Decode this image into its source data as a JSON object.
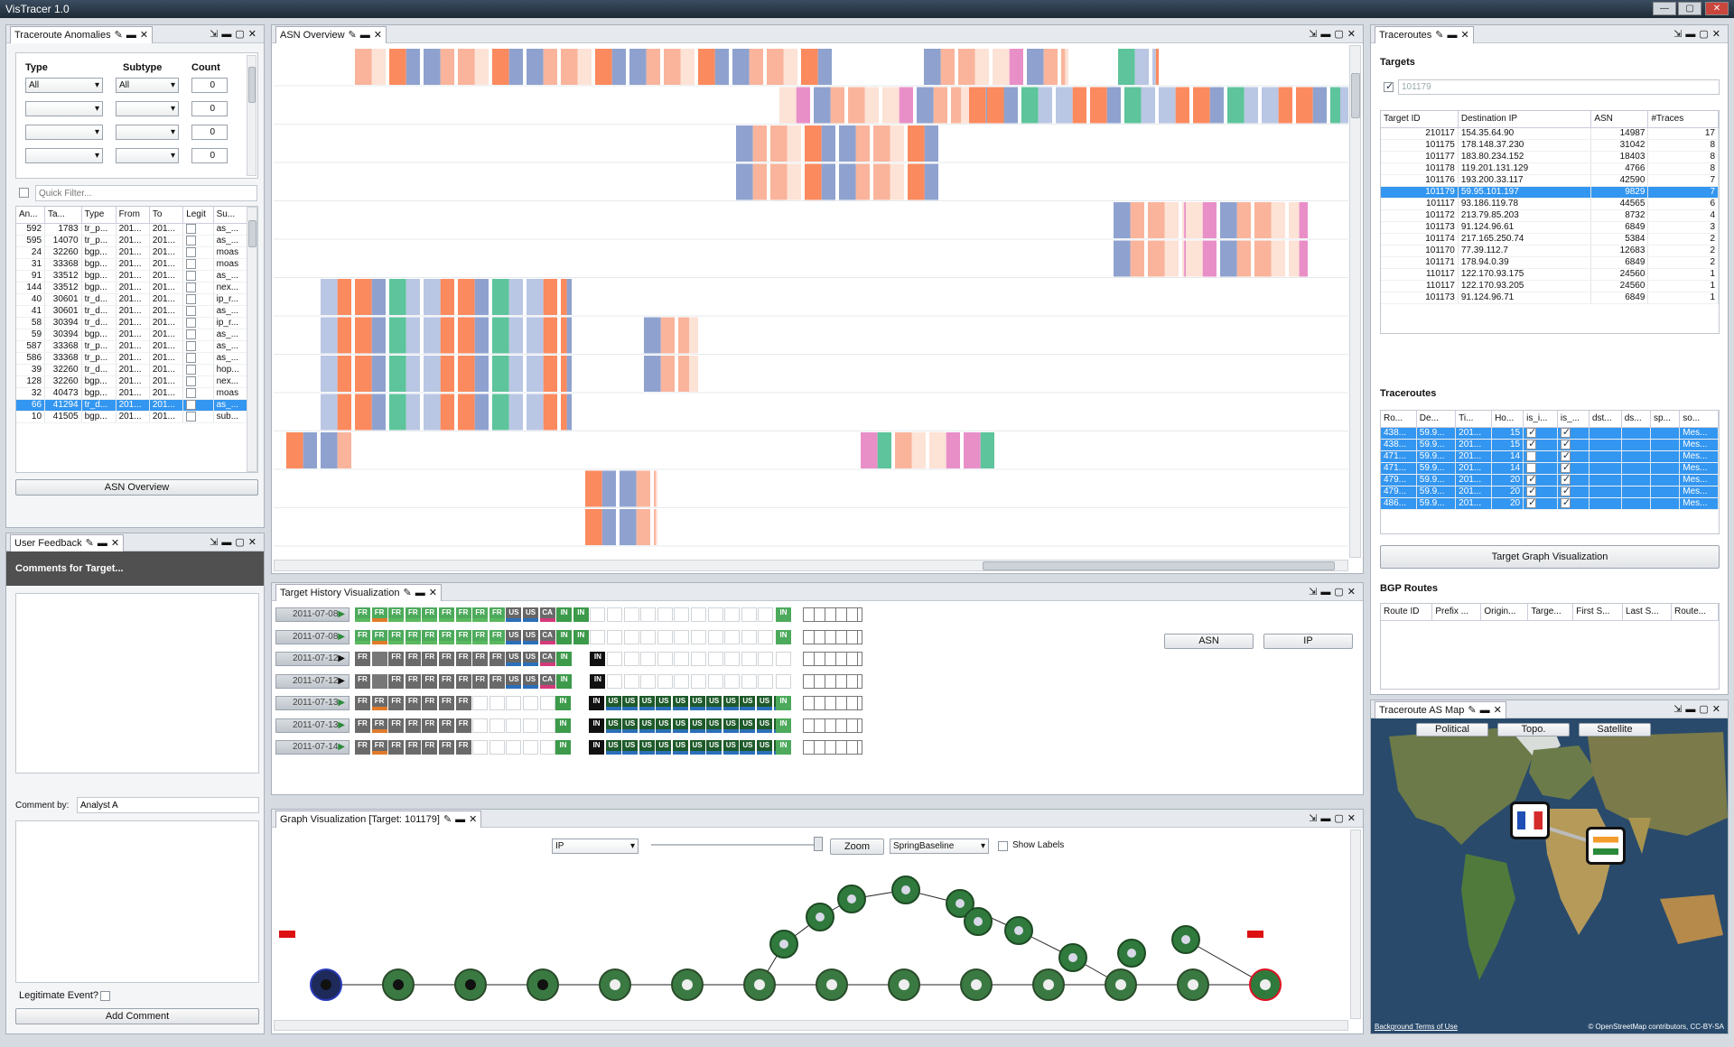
{
  "app": {
    "title": "VisTracer 1.0"
  },
  "anomalies": {
    "tab": "Traceroute Anomalies",
    "headers": [
      "Type",
      "Subtype",
      "Count"
    ],
    "filters": [
      {
        "type": "All",
        "subtype": "All",
        "count": "0"
      },
      {
        "type": "",
        "subtype": "",
        "count": "0"
      },
      {
        "type": "",
        "subtype": "",
        "count": "0"
      },
      {
        "type": "",
        "subtype": "",
        "count": "0"
      }
    ],
    "quick_filter_placeholder": "Quick Filter...",
    "columns": [
      "An...",
      "Ta...",
      "Type",
      "From",
      "To",
      "Legit",
      "Su..."
    ],
    "rows": [
      [
        "592",
        "1783",
        "tr_p...",
        "201...",
        "201...",
        "as_..."
      ],
      [
        "595",
        "14070",
        "tr_p...",
        "201...",
        "201...",
        "as_..."
      ],
      [
        "24",
        "32260",
        "bgp...",
        "201...",
        "201...",
        "moas"
      ],
      [
        "31",
        "33368",
        "bgp...",
        "201...",
        "201...",
        "moas"
      ],
      [
        "91",
        "33512",
        "bgp...",
        "201...",
        "201...",
        "as_..."
      ],
      [
        "144",
        "33512",
        "bgp...",
        "201...",
        "201...",
        "nex..."
      ],
      [
        "40",
        "30601",
        "tr_d...",
        "201...",
        "201...",
        "ip_r..."
      ],
      [
        "41",
        "30601",
        "tr_d...",
        "201...",
        "201...",
        "as_..."
      ],
      [
        "58",
        "30394",
        "tr_d...",
        "201...",
        "201...",
        "ip_r..."
      ],
      [
        "59",
        "30394",
        "bgp...",
        "201...",
        "201...",
        "as_..."
      ],
      [
        "587",
        "33368",
        "tr_p...",
        "201...",
        "201...",
        "as_..."
      ],
      [
        "586",
        "33368",
        "tr_p...",
        "201...",
        "201...",
        "as_..."
      ],
      [
        "39",
        "32260",
        "tr_d...",
        "201...",
        "201...",
        "hop..."
      ],
      [
        "128",
        "32260",
        "bgp...",
        "201...",
        "201...",
        "nex..."
      ],
      [
        "32",
        "40473",
        "bgp...",
        "201...",
        "201...",
        "moas"
      ],
      [
        "66",
        "41294",
        "tr_d...",
        "201...",
        "201...",
        "as_..."
      ],
      [
        "10",
        "41505",
        "bgp...",
        "201...",
        "201...",
        "sub..."
      ]
    ],
    "selected_row": 15,
    "button": "ASN Overview"
  },
  "feedback": {
    "tab": "User Feedback",
    "header": "Comments for Target...",
    "comment_by_label": "Comment by:",
    "comment_by_value": "Analyst A",
    "legit_label": "Legitimate Event?",
    "button": "Add Comment"
  },
  "asn_overview": {
    "tab": "ASN Overview"
  },
  "history": {
    "tab": "Target History Visualization",
    "asn_button": "ASN",
    "ip_button": "IP",
    "rows": [
      {
        "date": "2011-07-08",
        "cells": [
          "FR",
          "FR",
          "FR",
          "FR",
          "FR",
          "FR",
          "FR",
          "FR",
          "FR",
          "US",
          "US",
          "CA",
          "IN",
          "IN"
        ],
        "tail": "IN"
      },
      {
        "date": "2011-07-08",
        "cells": [
          "FR",
          "FR",
          "FR",
          "FR",
          "FR",
          "FR",
          "FR",
          "FR",
          "FR",
          "US",
          "US",
          "CA",
          "IN",
          "IN"
        ],
        "tail": "IN"
      },
      {
        "date": "2011-07-12",
        "cells": [
          "FR",
          "",
          "FR",
          "FR",
          "FR",
          "FR",
          "FR",
          "FR",
          "FR",
          "US",
          "US",
          "CA",
          "IN"
        ],
        "tail": "IN"
      },
      {
        "date": "2011-07-12",
        "cells": [
          "FR",
          "",
          "FR",
          "FR",
          "FR",
          "FR",
          "FR",
          "FR",
          "FR",
          "US",
          "US",
          "CA",
          "IN"
        ],
        "tail": "IN"
      },
      {
        "date": "2011-07-13",
        "cells": [
          "FR",
          "FR",
          "FR",
          "FR",
          "FR",
          "FR",
          "FR"
        ],
        "mid": "IN",
        "us": [
          "IN",
          "US",
          "US",
          "US",
          "US",
          "US",
          "US",
          "US",
          "US",
          "US",
          "US",
          "US"
        ],
        "tail": "IN"
      },
      {
        "date": "2011-07-13",
        "cells": [
          "FR",
          "FR",
          "FR",
          "FR",
          "FR",
          "FR",
          "FR"
        ],
        "mid": "IN",
        "us": [
          "IN",
          "US",
          "US",
          "US",
          "US",
          "US",
          "US",
          "US",
          "US",
          "US",
          "US",
          "US"
        ],
        "tail": "IN"
      },
      {
        "date": "2011-07-14",
        "cells": [
          "FR",
          "FR",
          "FR",
          "FR",
          "FR",
          "FR",
          "FR"
        ],
        "mid": "IN",
        "us": [
          "IN",
          "US",
          "US",
          "US",
          "US",
          "US",
          "US",
          "US",
          "US",
          "US",
          "US",
          "US"
        ],
        "tail": "IN"
      }
    ]
  },
  "graph": {
    "tab": "Graph Visualization [Target: 101179]",
    "mode": "IP",
    "zoom": "Zoom",
    "layout": "SpringBaseline",
    "show_labels": "Show Labels"
  },
  "traceroutes": {
    "tab": "Traceroutes",
    "targets_title": "Targets",
    "filter_value": "101179",
    "target_columns": [
      "Target ID",
      "Destination IP",
      "ASN",
      "#Traces"
    ],
    "targets": [
      [
        "210117",
        "154.35.64.90",
        "14987",
        "17"
      ],
      [
        "101175",
        "178.148.37.230",
        "31042",
        "8"
      ],
      [
        "101177",
        "183.80.234.152",
        "18403",
        "8"
      ],
      [
        "101178",
        "119.201.131.129",
        "4766",
        "8"
      ],
      [
        "101176",
        "193.200.33.117",
        "42590",
        "7"
      ],
      [
        "101179",
        "59.95.101.197",
        "9829",
        "7"
      ],
      [
        "101117",
        "93.186.119.78",
        "44565",
        "6"
      ],
      [
        "101172",
        "213.79.85.203",
        "8732",
        "4"
      ],
      [
        "101173",
        "91.124.96.61",
        "6849",
        "3"
      ],
      [
        "101174",
        "217.165.250.74",
        "5384",
        "2"
      ],
      [
        "101170",
        "77.39.112.7",
        "12683",
        "2"
      ],
      [
        "101171",
        "178.94.0.39",
        "6849",
        "2"
      ],
      [
        "110117",
        "122.170.93.175",
        "24560",
        "1"
      ],
      [
        "110117",
        "122.170.93.205",
        "24560",
        "1"
      ],
      [
        "101173",
        "91.124.96.71",
        "6849",
        "1"
      ]
    ],
    "selected_target": 5,
    "traceroutes_title": "Traceroutes",
    "route_columns": [
      "Ro...",
      "De...",
      "Ti...",
      "Ho...",
      "is_i...",
      "is_...",
      "dst...",
      "ds...",
      "sp...",
      "so..."
    ],
    "routes": [
      [
        "438...",
        "59.9...",
        "201...",
        "15",
        "Mes..."
      ],
      [
        "438...",
        "59.9...",
        "201...",
        "15",
        "Mes..."
      ],
      [
        "471...",
        "59.9...",
        "201...",
        "14",
        "Mes..."
      ],
      [
        "471...",
        "59.9...",
        "201...",
        "14",
        "Mes..."
      ],
      [
        "479...",
        "59.9...",
        "201...",
        "20",
        "Mes..."
      ],
      [
        "479...",
        "59.9...",
        "201...",
        "20",
        "Mes..."
      ],
      [
        "486...",
        "59.9...",
        "201...",
        "20",
        "Mes..."
      ]
    ],
    "graph_button": "Target Graph Visualization",
    "bgp_title": "BGP Routes",
    "bgp_columns": [
      "Route ID",
      "Prefix ...",
      "Origin...",
      "Targe...",
      "First S...",
      "Last S...",
      "Route..."
    ]
  },
  "asmap": {
    "tab": "Traceroute AS Map",
    "buttons": [
      "Political",
      "Topo.",
      "Satellite"
    ],
    "attribution_left": "Background Terms of Use",
    "attribution_right": "© OpenStreetMap contributors, CC-BY-SA"
  },
  "colors": {
    "selection": "#3396f0",
    "fr_green": "#4daa5c",
    "us_dark": "#1e5a2a",
    "orange": "#fb8a5e",
    "lavender": "#8fa2cf",
    "pink": "#e98fc8",
    "teal": "#5dc49b"
  }
}
